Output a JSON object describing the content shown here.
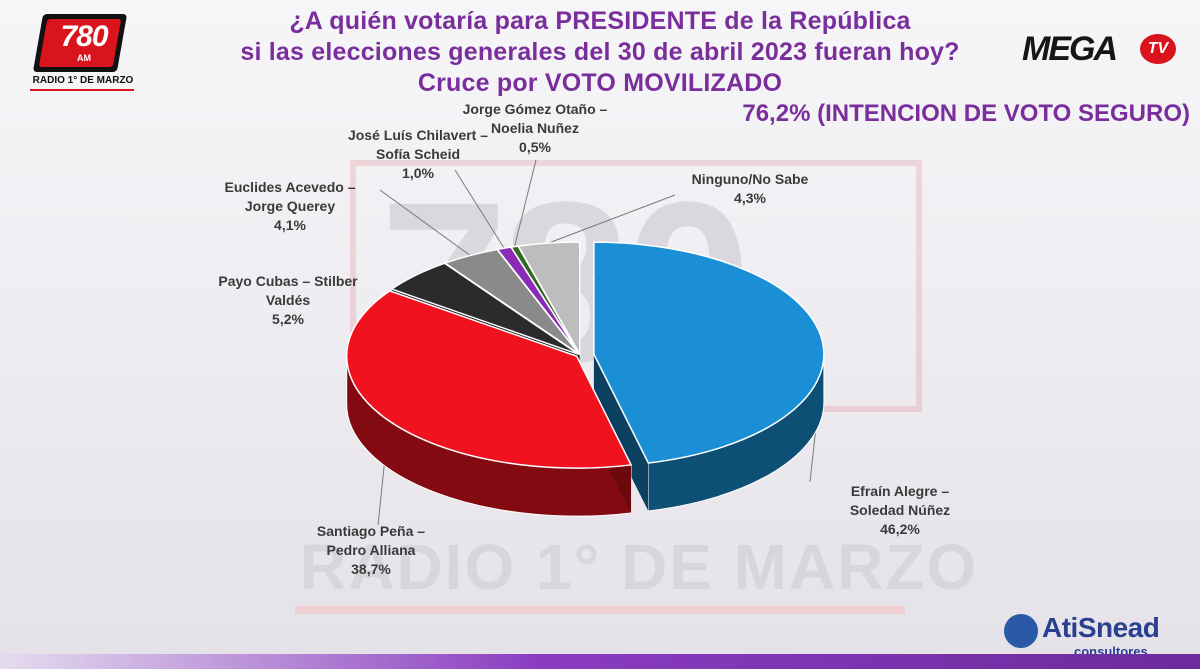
{
  "header": {
    "title_lines": [
      "¿A quién votaría para PRESIDENTE de la República",
      "si las elecciones generales del 30 de abril 2023 fueran hoy?",
      "Cruce por VOTO MOVILIZADO"
    ],
    "subtitle": "76,2% (INTENCION DE VOTO SEGURO)"
  },
  "logos": {
    "radio_number": "780",
    "radio_am": "AM",
    "radio_name": "RADIO 1° DE MARZO",
    "mega": "MEGA",
    "mega_tv": "TV",
    "ati_name": "AtiSnead",
    "ati_sub": "consultores"
  },
  "watermark": {
    "number": "780",
    "text": "RADIO 1° DE MARZO"
  },
  "colors": {
    "title": "#7a2e9c",
    "accent_red": "#d9141c"
  },
  "chart_data": {
    "type": "pie",
    "title": "¿A quién votaría para PRESIDENTE de la República si las elecciones generales del 30 de abril 2023 fueran hoy? Cruce por VOTO MOVILIZADO",
    "style": "3d-exploded",
    "slices": [
      {
        "label": "Efraín Alegre – Soledad Núñez",
        "value": 46.2,
        "display": "46,2%",
        "color": "#1a8fd6"
      },
      {
        "label": "Santiago Peña – Pedro Alliana",
        "value": 38.7,
        "display": "38,7%",
        "color": "#f0121f"
      },
      {
        "label": "Payo Cubas – Stilber Valdés",
        "value": 5.2,
        "display": "5,2%",
        "color": "#2b2b2b"
      },
      {
        "label": "Euclides Acevedo – Jorge Querey",
        "value": 4.1,
        "display": "4,1%",
        "color": "#8a8a8a"
      },
      {
        "label": "José Luís Chilavert – Sofía Scheid",
        "value": 1.0,
        "display": "1,0%",
        "color": "#8b2bb5"
      },
      {
        "label": "Jorge Gómez Otaño – Noelia Nuñez",
        "value": 0.5,
        "display": "0,5%",
        "color": "#2f6a1e"
      },
      {
        "label": "Ninguno/No Sabe",
        "value": 4.3,
        "display": "4,3%",
        "color": "#bdbdbd"
      }
    ]
  },
  "labels": [
    {
      "name_lines": [
        "Efraín Alegre –",
        "Soledad Núñez"
      ],
      "value": "46,2%"
    },
    {
      "name_lines": [
        "Santiago Peña –",
        "Pedro Alliana"
      ],
      "value": "38,7%"
    },
    {
      "name_lines": [
        "Payo Cubas – Stilber",
        "Valdés"
      ],
      "value": "5,2%"
    },
    {
      "name_lines": [
        "Euclides Acevedo –",
        "Jorge Querey"
      ],
      "value": "4,1%"
    },
    {
      "name_lines": [
        "José Luís Chilavert –",
        "Sofía Scheid"
      ],
      "value": "1,0%"
    },
    {
      "name_lines": [
        "Jorge Gómez Otaño –",
        "Noelia Nuñez"
      ],
      "value": "0,5%"
    },
    {
      "name_lines": [
        "Ninguno/No Sabe"
      ],
      "value": "4,3%"
    }
  ]
}
